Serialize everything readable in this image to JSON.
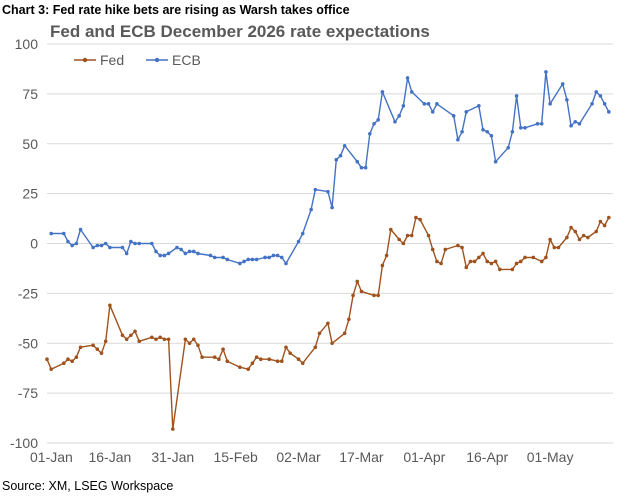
{
  "figure": {
    "caption": "Chart 3: Fed rate hike bets are rising as Warsh takes office",
    "source": "Source: XM, LSEG Workspace"
  },
  "chart_data": {
    "type": "line",
    "title": "Fed and ECB December 2026 rate expectations",
    "xlabel": "",
    "ylabel": "",
    "ylim": [
      -100,
      100
    ],
    "yticks": [
      -100,
      -75,
      -50,
      -25,
      0,
      25,
      50,
      75,
      100
    ],
    "xlim": [
      "2026-01-01",
      "2026-05-16"
    ],
    "xticks": [
      {
        "date": "2026-01-01",
        "label": "01-Jan"
      },
      {
        "date": "2026-01-16",
        "label": "16-Jan"
      },
      {
        "date": "2026-01-31",
        "label": "31-Jan"
      },
      {
        "date": "2026-02-15",
        "label": "15-Feb"
      },
      {
        "date": "2026-03-02",
        "label": "02-Mar"
      },
      {
        "date": "2026-03-17",
        "label": "17-Mar"
      },
      {
        "date": "2026-04-01",
        "label": "01-Apr"
      },
      {
        "date": "2026-04-16",
        "label": "16-Apr"
      },
      {
        "date": "2026-05-01",
        "label": "01-May"
      }
    ],
    "grid": "horizontal",
    "legend": "top-left",
    "series": [
      {
        "name": "Fed",
        "color": "#a0521e",
        "points": [
          [
            "2026-01-01",
            -58
          ],
          [
            "2026-01-02",
            -63
          ],
          [
            "2026-01-05",
            -60
          ],
          [
            "2026-01-06",
            -58
          ],
          [
            "2026-01-07",
            -59
          ],
          [
            "2026-01-08",
            -57
          ],
          [
            "2026-01-09",
            -52
          ],
          [
            "2026-01-12",
            -51
          ],
          [
            "2026-01-13",
            -53
          ],
          [
            "2026-01-14",
            -55
          ],
          [
            "2026-01-15",
            -49
          ],
          [
            "2026-01-16",
            -31
          ],
          [
            "2026-01-19",
            -46
          ],
          [
            "2026-01-20",
            -48
          ],
          [
            "2026-01-21",
            -46
          ],
          [
            "2026-01-22",
            -44
          ],
          [
            "2026-01-23",
            -49
          ],
          [
            "2026-01-26",
            -47
          ],
          [
            "2026-01-27",
            -48
          ],
          [
            "2026-01-28",
            -47
          ],
          [
            "2026-01-29",
            -48
          ],
          [
            "2026-01-30",
            -48
          ],
          [
            "2026-01-31",
            -93
          ],
          [
            "2026-02-03",
            -48
          ],
          [
            "2026-02-04",
            -50
          ],
          [
            "2026-02-05",
            -48
          ],
          [
            "2026-02-06",
            -51
          ],
          [
            "2026-02-07",
            -57
          ],
          [
            "2026-02-10",
            -57
          ],
          [
            "2026-02-11",
            -58
          ],
          [
            "2026-02-12",
            -53
          ],
          [
            "2026-02-13",
            -59
          ],
          [
            "2026-02-16",
            -62
          ],
          [
            "2026-02-18",
            -63
          ],
          [
            "2026-02-19",
            -60
          ],
          [
            "2026-02-20",
            -57
          ],
          [
            "2026-02-21",
            -58
          ],
          [
            "2026-02-23",
            -58
          ],
          [
            "2026-02-25",
            -59
          ],
          [
            "2026-02-26",
            -59
          ],
          [
            "2026-02-27",
            -52
          ],
          [
            "2026-02-28",
            -55
          ],
          [
            "2026-03-02",
            -58
          ],
          [
            "2026-03-03",
            -60
          ],
          [
            "2026-03-06",
            -52
          ],
          [
            "2026-03-07",
            -45
          ],
          [
            "2026-03-09",
            -40
          ],
          [
            "2026-03-10",
            -50
          ],
          [
            "2026-03-13",
            -45
          ],
          [
            "2026-03-14",
            -38
          ],
          [
            "2026-03-15",
            -26
          ],
          [
            "2026-03-16",
            -19
          ],
          [
            "2026-03-17",
            -24
          ],
          [
            "2026-03-20",
            -26
          ],
          [
            "2026-03-21",
            -26
          ],
          [
            "2026-03-22",
            -11
          ],
          [
            "2026-03-23",
            -6
          ],
          [
            "2026-03-24",
            7
          ],
          [
            "2026-03-26",
            2
          ],
          [
            "2026-03-27",
            0
          ],
          [
            "2026-03-28",
            4
          ],
          [
            "2026-03-29",
            4
          ],
          [
            "2026-03-30",
            13
          ],
          [
            "2026-03-31",
            12
          ],
          [
            "2026-04-02",
            4
          ],
          [
            "2026-04-03",
            -3
          ],
          [
            "2026-04-04",
            -9
          ],
          [
            "2026-04-05",
            -10
          ],
          [
            "2026-04-06",
            -3
          ],
          [
            "2026-04-09",
            -1
          ],
          [
            "2026-04-10",
            -2
          ],
          [
            "2026-04-11",
            -12
          ],
          [
            "2026-04-12",
            -9
          ],
          [
            "2026-04-13",
            -9
          ],
          [
            "2026-04-14",
            -7
          ],
          [
            "2026-04-15",
            -5
          ],
          [
            "2026-04-16",
            -9
          ],
          [
            "2026-04-17",
            -10
          ],
          [
            "2026-04-18",
            -9
          ],
          [
            "2026-04-19",
            -13
          ],
          [
            "2026-04-22",
            -13
          ],
          [
            "2026-04-23",
            -10
          ],
          [
            "2026-04-24",
            -9
          ],
          [
            "2026-04-25",
            -7
          ],
          [
            "2026-04-27",
            -7
          ],
          [
            "2026-04-29",
            -9
          ],
          [
            "2026-04-30",
            -7
          ],
          [
            "2026-05-01",
            2
          ],
          [
            "2026-05-02",
            -2
          ],
          [
            "2026-05-03",
            -2
          ],
          [
            "2026-05-05",
            3
          ],
          [
            "2026-05-06",
            8
          ],
          [
            "2026-05-07",
            6
          ],
          [
            "2026-05-08",
            2
          ],
          [
            "2026-05-09",
            4
          ],
          [
            "2026-05-10",
            3
          ],
          [
            "2026-05-12",
            6
          ],
          [
            "2026-05-13",
            11
          ],
          [
            "2026-05-14",
            9
          ],
          [
            "2026-05-15",
            13
          ]
        ]
      },
      {
        "name": "ECB",
        "color": "#4472c4",
        "points": [
          [
            "2026-01-02",
            5
          ],
          [
            "2026-01-05",
            5
          ],
          [
            "2026-01-06",
            1
          ],
          [
            "2026-01-07",
            -1
          ],
          [
            "2026-01-08",
            0
          ],
          [
            "2026-01-09",
            7
          ],
          [
            "2026-01-12",
            -2
          ],
          [
            "2026-01-13",
            -1
          ],
          [
            "2026-01-14",
            -1
          ],
          [
            "2026-01-15",
            0
          ],
          [
            "2026-01-16",
            -2
          ],
          [
            "2026-01-19",
            -2
          ],
          [
            "2026-01-20",
            -5
          ],
          [
            "2026-01-21",
            1
          ],
          [
            "2026-01-22",
            0
          ],
          [
            "2026-01-23",
            0
          ],
          [
            "2026-01-26",
            0
          ],
          [
            "2026-01-27",
            -4
          ],
          [
            "2026-01-28",
            -6
          ],
          [
            "2026-01-29",
            -6
          ],
          [
            "2026-01-30",
            -5
          ],
          [
            "2026-02-01",
            -2
          ],
          [
            "2026-02-02",
            -3
          ],
          [
            "2026-02-03",
            -5
          ],
          [
            "2026-02-04",
            -4
          ],
          [
            "2026-02-05",
            -4
          ],
          [
            "2026-02-06",
            -5
          ],
          [
            "2026-02-09",
            -6
          ],
          [
            "2026-02-10",
            -7
          ],
          [
            "2026-02-12",
            -7
          ],
          [
            "2026-02-13",
            -8
          ],
          [
            "2026-02-16",
            -10
          ],
          [
            "2026-02-17",
            -9
          ],
          [
            "2026-02-18",
            -8
          ],
          [
            "2026-02-19",
            -8
          ],
          [
            "2026-02-20",
            -8
          ],
          [
            "2026-02-22",
            -7
          ],
          [
            "2026-02-23",
            -7
          ],
          [
            "2026-02-24",
            -6
          ],
          [
            "2026-02-25",
            -6
          ],
          [
            "2026-02-26",
            -7
          ],
          [
            "2026-02-27",
            -10
          ],
          [
            "2026-03-02",
            1
          ],
          [
            "2026-03-03",
            5
          ],
          [
            "2026-03-05",
            17
          ],
          [
            "2026-03-06",
            27
          ],
          [
            "2026-03-09",
            26
          ],
          [
            "2026-03-10",
            18
          ],
          [
            "2026-03-11",
            42
          ],
          [
            "2026-03-12",
            44
          ],
          [
            "2026-03-13",
            49
          ],
          [
            "2026-03-16",
            41
          ],
          [
            "2026-03-17",
            38
          ],
          [
            "2026-03-18",
            38
          ],
          [
            "2026-03-19",
            55
          ],
          [
            "2026-03-20",
            60
          ],
          [
            "2026-03-21",
            62
          ],
          [
            "2026-03-22",
            76
          ],
          [
            "2026-03-25",
            61
          ],
          [
            "2026-03-26",
            64
          ],
          [
            "2026-03-27",
            69
          ],
          [
            "2026-03-28",
            83
          ],
          [
            "2026-03-29",
            76
          ],
          [
            "2026-04-01",
            70
          ],
          [
            "2026-04-02",
            70
          ],
          [
            "2026-04-03",
            66
          ],
          [
            "2026-04-04",
            70
          ],
          [
            "2026-04-08",
            64
          ],
          [
            "2026-04-09",
            52
          ],
          [
            "2026-04-10",
            56
          ],
          [
            "2026-04-11",
            66
          ],
          [
            "2026-04-14",
            69
          ],
          [
            "2026-04-15",
            57
          ],
          [
            "2026-04-16",
            56
          ],
          [
            "2026-04-17",
            54
          ],
          [
            "2026-04-18",
            41
          ],
          [
            "2026-04-21",
            48
          ],
          [
            "2026-04-22",
            56
          ],
          [
            "2026-04-23",
            74
          ],
          [
            "2026-04-24",
            58
          ],
          [
            "2026-04-25",
            58
          ],
          [
            "2026-04-28",
            60
          ],
          [
            "2026-04-29",
            60
          ],
          [
            "2026-04-30",
            86
          ],
          [
            "2026-05-01",
            70
          ],
          [
            "2026-05-04",
            80
          ],
          [
            "2026-05-05",
            72
          ],
          [
            "2026-05-06",
            59
          ],
          [
            "2026-05-07",
            61
          ],
          [
            "2026-05-08",
            60
          ],
          [
            "2026-05-11",
            70
          ],
          [
            "2026-05-12",
            76
          ],
          [
            "2026-05-13",
            74
          ],
          [
            "2026-05-14",
            70
          ],
          [
            "2026-05-15",
            66
          ]
        ]
      }
    ]
  }
}
